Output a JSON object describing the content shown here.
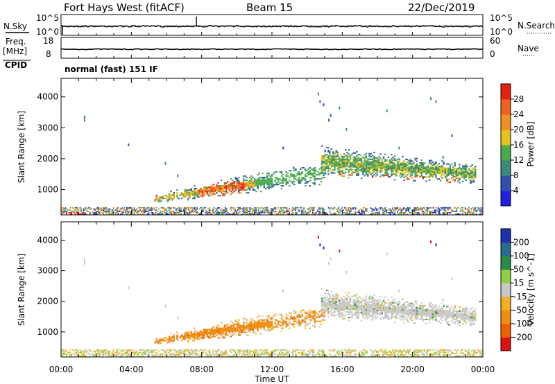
{
  "header": {
    "title": "Fort Hays West (fitACF)",
    "beam": "Beam 15",
    "date": "22/Dec/2019"
  },
  "noise_panel": {
    "left_label": "N.Sky",
    "right_label": "N.Search",
    "left_ticks": [
      "10^5",
      "10^0"
    ],
    "right_ticks": [
      "10^5",
      "10^0"
    ]
  },
  "freq_panel": {
    "left_label_1": "Freq.",
    "left_label_2": "[MHz]",
    "left_ticks": [
      "18",
      "8"
    ],
    "right_label": "Nave",
    "right_ticks": [
      "60",
      "0"
    ]
  },
  "cpid_panel": {
    "label": "CPID",
    "text": "normal (fast) 151 IF"
  },
  "colors": {
    "power_scale": [
      "#2020e0",
      "#3050b0",
      "#3a8a7a",
      "#4aaa50",
      "#e8c020",
      "#f09020",
      "#f06020",
      "#e82010"
    ],
    "velocity_scale": [
      "#e01010",
      "#f06000",
      "#f08c10",
      "#f0b020",
      "#c8c8c8",
      "#90d040",
      "#2a8a4a",
      "#2a6a8a",
      "#2030b0"
    ]
  },
  "chart_data": [
    {
      "type": "heatmap",
      "title": "",
      "xlabel": "",
      "ylabel": "Slant Range [km]",
      "x_ticks": [
        "00:00",
        "04:00",
        "08:00",
        "12:00",
        "16:00",
        "20:00",
        "00:00"
      ],
      "y_ticks": [
        "1000",
        "2000",
        "3000",
        "4000"
      ],
      "ylim": [
        180,
        4600
      ],
      "colorbar_label": "Power [dB]",
      "colorbar_ticks": [
        "4",
        "8",
        "12",
        "16",
        "20",
        "24",
        "28"
      ],
      "colorbar_range": [
        0,
        30
      ],
      "echo_regions": [
        {
          "t_start": 5.5,
          "t_end": 15.0,
          "range_km": "700-1500",
          "note": "strong echoes 08:00-10:00 near 800-1300 km"
        },
        {
          "t_start": 15.0,
          "t_end": 23.5,
          "range_km": "1100-2300",
          "note": "band descending from ~2200 km to ~1300 km"
        },
        {
          "t_start": 0.0,
          "t_end": 24.0,
          "range_km": "180-400",
          "note": "near-range ground/meteor echoes"
        }
      ]
    },
    {
      "type": "heatmap",
      "title": "",
      "xlabel": "Time UT",
      "ylabel": "Slant Range [km]",
      "x_ticks": [
        "00:00",
        "04:00",
        "08:00",
        "12:00",
        "16:00",
        "20:00",
        "00:00"
      ],
      "y_ticks": [
        "1000",
        "2000",
        "3000",
        "4000"
      ],
      "ylim": [
        180,
        4600
      ],
      "colorbar_label": "Velocity [m s^-1]",
      "colorbar_ticks": [
        "200",
        "100",
        "50",
        "15",
        "-15",
        "-50",
        "-100",
        "-200"
      ],
      "colorbar_range": [
        -250,
        250
      ],
      "echo_regions": [
        {
          "t_start": 5.5,
          "t_end": 15.0,
          "range_km": "700-1500",
          "note": "negative velocities (-50 to -100)"
        },
        {
          "t_start": 15.0,
          "t_end": 23.5,
          "range_km": "1100-2300",
          "note": "near-zero velocities (-15 to 15)"
        }
      ]
    }
  ]
}
